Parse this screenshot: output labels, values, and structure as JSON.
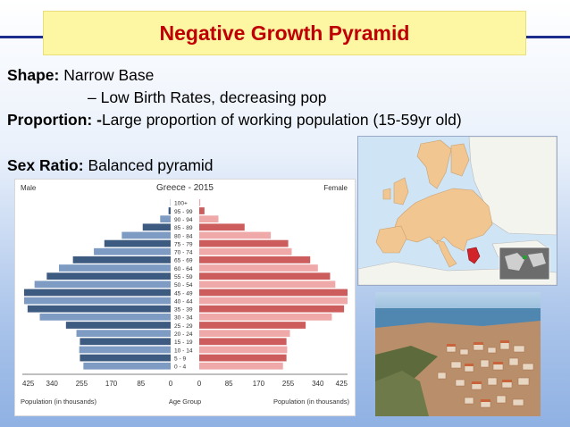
{
  "title": "Negative Growth Pyramid",
  "bullets": {
    "shape_label": "Shape:",
    "shape_value": "Narrow Base",
    "shape_detail": "– Low Birth Rates, decreasing pop",
    "proportion_label": "Proportion: -",
    "proportion_value": "Large proportion of working population (15-59yr old)",
    "sex_ratio_label": "Sex Ratio:",
    "sex_ratio_value": "Balanced pyramid"
  },
  "colors": {
    "title_text": "#c00000",
    "title_bg": "#fdf6a3",
    "rule": "#1e2c8c",
    "male_dark": "#3d5a80",
    "male_light": "#7e9cc3",
    "female_dark": "#cd5c5c",
    "female_light": "#f0a9a9"
  },
  "chart_data": {
    "type": "bar",
    "title": "Greece - 2015",
    "left_label": "Male",
    "right_label": "Female",
    "age_groups": [
      "100+",
      "95 - 99",
      "90 - 94",
      "85 - 89",
      "80 - 84",
      "75 - 79",
      "70 - 74",
      "65 - 69",
      "60 - 64",
      "55 - 59",
      "50 - 54",
      "45 - 49",
      "40 - 44",
      "35 - 39",
      "30 - 34",
      "25 - 29",
      "20 - 24",
      "15 - 19",
      "10 - 14",
      "5 - 9",
      "0 - 4"
    ],
    "series": [
      {
        "name": "Male",
        "values": [
          1,
          6,
          30,
          80,
          140,
          190,
          220,
          280,
          320,
          355,
          390,
          420,
          420,
          410,
          375,
          300,
          270,
          260,
          262,
          260,
          250
        ]
      },
      {
        "name": "Female",
        "values": [
          3,
          15,
          55,
          130,
          205,
          255,
          265,
          318,
          340,
          375,
          390,
          425,
          425,
          415,
          380,
          305,
          260,
          250,
          252,
          250,
          240
        ]
      }
    ],
    "xlim": [
      0,
      425
    ],
    "x_ticks_left": [
      "425",
      "340",
      "255",
      "170",
      "85",
      "0"
    ],
    "x_ticks_right": [
      "0",
      "85",
      "170",
      "255",
      "340",
      "425"
    ],
    "xlabel_left": "Population (in thousands)",
    "xlabel_center": "Age Group",
    "xlabel_right": "Population (in thousands)"
  }
}
